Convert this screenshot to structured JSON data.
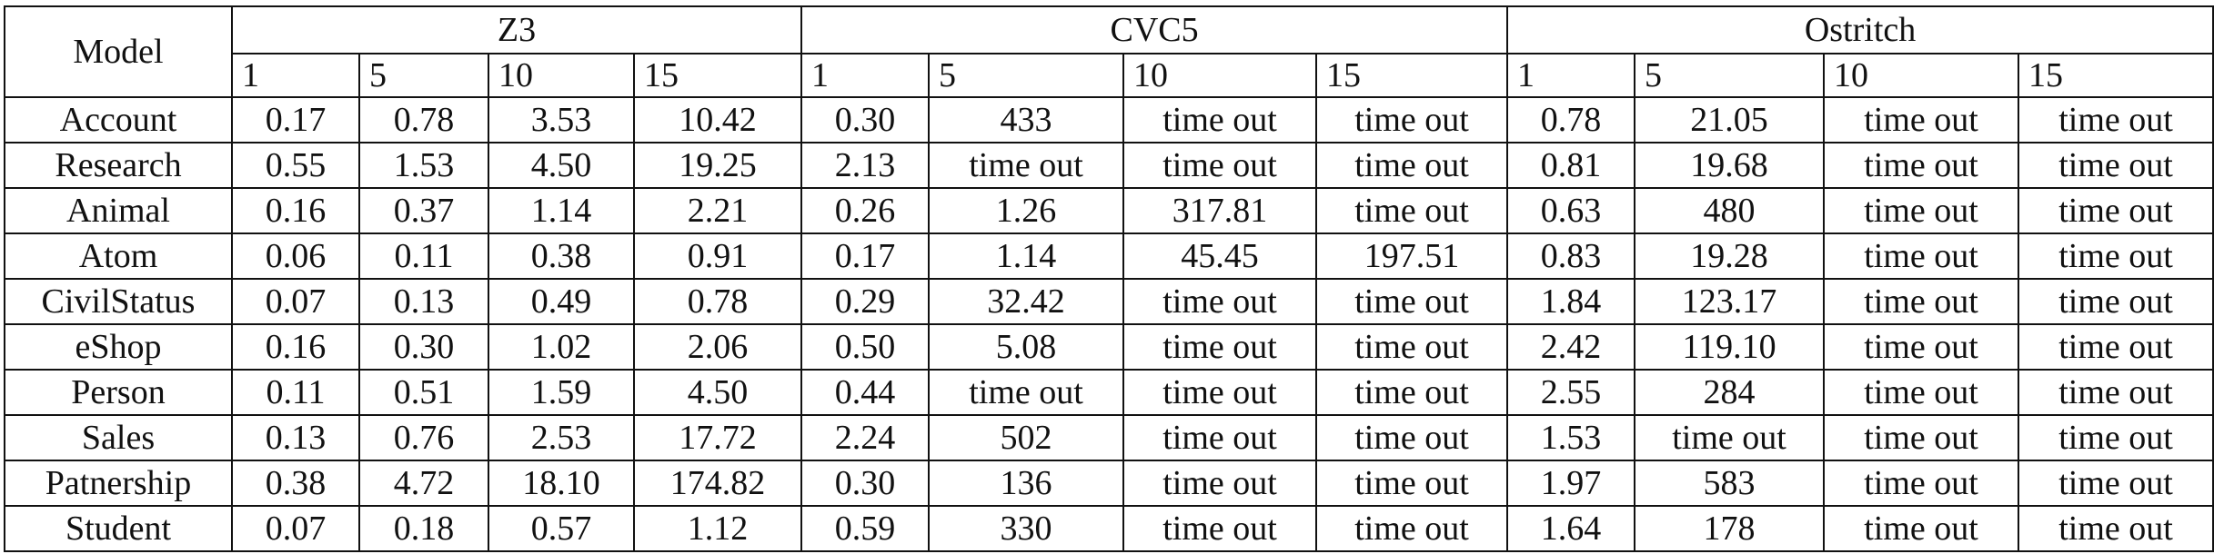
{
  "table": {
    "model_header": "Model",
    "solvers": [
      "Z3",
      "CVC5",
      "Ostritch"
    ],
    "sizes": [
      "1",
      "5",
      "10",
      "15"
    ],
    "rows": [
      {
        "model": "Account",
        "z3": [
          "0.17",
          "0.78",
          "3.53",
          "10.42"
        ],
        "cvc5": [
          "0.30",
          "433",
          "time out",
          "time out"
        ],
        "ostritch": [
          "0.78",
          "21.05",
          "time out",
          "time out"
        ]
      },
      {
        "model": "Research",
        "z3": [
          "0.55",
          "1.53",
          "4.50",
          "19.25"
        ],
        "cvc5": [
          "2.13",
          "time out",
          "time out",
          "time out"
        ],
        "ostritch": [
          "0.81",
          "19.68",
          "time out",
          "time out"
        ]
      },
      {
        "model": "Animal",
        "z3": [
          "0.16",
          "0.37",
          "1.14",
          "2.21"
        ],
        "cvc5": [
          "0.26",
          "1.26",
          "317.81",
          "time out"
        ],
        "ostritch": [
          "0.63",
          "480",
          "time out",
          "time out"
        ]
      },
      {
        "model": "Atom",
        "z3": [
          "0.06",
          "0.11",
          "0.38",
          "0.91"
        ],
        "cvc5": [
          "0.17",
          "1.14",
          "45.45",
          "197.51"
        ],
        "ostritch": [
          "0.83",
          "19.28",
          "time out",
          "time out"
        ]
      },
      {
        "model": "CivilStatus",
        "z3": [
          "0.07",
          "0.13",
          "0.49",
          "0.78"
        ],
        "cvc5": [
          "0.29",
          "32.42",
          "time out",
          "time out"
        ],
        "ostritch": [
          "1.84",
          "123.17",
          "time out",
          "time out"
        ]
      },
      {
        "model": "eShop",
        "z3": [
          "0.16",
          "0.30",
          "1.02",
          "2.06"
        ],
        "cvc5": [
          "0.50",
          "5.08",
          "time out",
          "time out"
        ],
        "ostritch": [
          "2.42",
          "119.10",
          "time out",
          "time out"
        ]
      },
      {
        "model": "Person",
        "z3": [
          "0.11",
          "0.51",
          "1.59",
          "4.50"
        ],
        "cvc5": [
          "0.44",
          "time out",
          "time out",
          "time out"
        ],
        "ostritch": [
          "2.55",
          "284",
          "time out",
          "time out"
        ]
      },
      {
        "model": "Sales",
        "z3": [
          "0.13",
          "0.76",
          "2.53",
          "17.72"
        ],
        "cvc5": [
          "2.24",
          "502",
          "time out",
          "time out"
        ],
        "ostritch": [
          "1.53",
          "time out",
          "time out",
          "time out"
        ]
      },
      {
        "model": "Patnership",
        "z3": [
          "0.38",
          "4.72",
          "18.10",
          "174.82"
        ],
        "cvc5": [
          "0.30",
          "136",
          "time out",
          "time out"
        ],
        "ostritch": [
          "1.97",
          "583",
          "time out",
          "time out"
        ]
      },
      {
        "model": "Student",
        "z3": [
          "0.07",
          "0.18",
          "0.57",
          "1.12"
        ],
        "cvc5": [
          "0.59",
          "330",
          "time out",
          "time out"
        ],
        "ostritch": [
          "1.64",
          "178",
          "time out",
          "time out"
        ]
      }
    ]
  }
}
